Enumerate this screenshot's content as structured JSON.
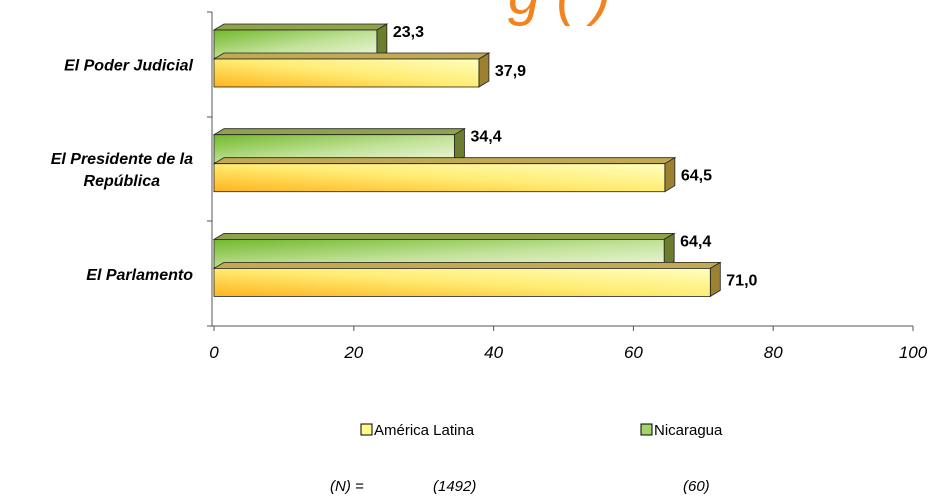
{
  "chart_data": {
    "type": "bar",
    "orientation": "horizontal",
    "title_fragment": "g  ( )",
    "categories": [
      "El Poder Judicial",
      "El Presidente de la República",
      "El Parlamento"
    ],
    "category_lines": [
      [
        "El Poder Judicial"
      ],
      [
        "El Presidente de la",
        "República"
      ],
      [
        "El Parlamento"
      ]
    ],
    "series": [
      {
        "name": "Nicaragua",
        "values": [
          23.3,
          34.4,
          64.4
        ],
        "labels": [
          "23,3",
          "34,4",
          "64,4"
        ],
        "color": "#8bc63e"
      },
      {
        "name": "América Latina",
        "values": [
          37.9,
          64.5,
          71.0
        ],
        "labels": [
          "37,9",
          "64,5",
          "71,0"
        ],
        "color": "#ffd23a"
      }
    ],
    "xlim": [
      0,
      100
    ],
    "xticks": [
      0,
      20,
      40,
      60,
      80,
      100
    ],
    "xtick_labels": [
      "0",
      "20",
      "40",
      "60",
      "80",
      "100"
    ],
    "grid": false,
    "legend_position": "bottom",
    "legend": [
      {
        "name": "América Latina",
        "color": "#fffb8a"
      },
      {
        "name": "Nicaragua",
        "color": "#a4d36b"
      }
    ],
    "sample_sizes": {
      "prefix": "(N) =",
      "values": [
        "(1492)",
        "(60)"
      ]
    }
  }
}
